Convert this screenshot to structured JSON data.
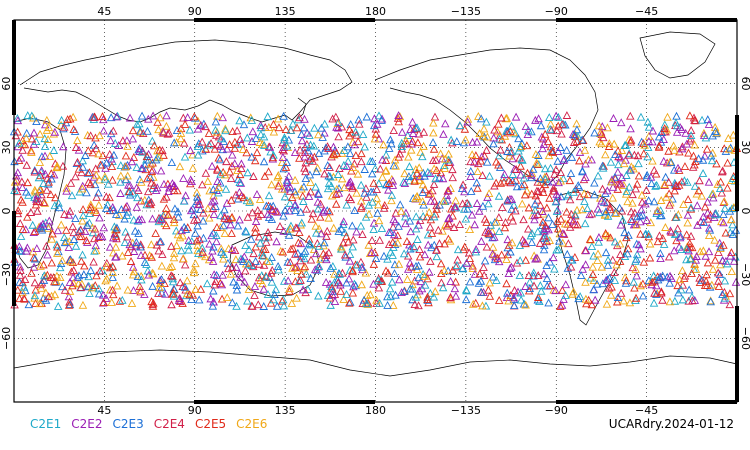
{
  "map": {
    "lon_ticks_top": [
      "45",
      "90",
      "135",
      "180",
      "−135",
      "−90",
      "−45"
    ],
    "lon_ticks_bottom": [
      "45",
      "90",
      "135",
      "180",
      "−135",
      "−90",
      "−45"
    ],
    "lat_ticks_left": [
      "60",
      "30",
      "0",
      "−30",
      "−60"
    ],
    "lat_ticks_right": [
      "60",
      "30",
      "0",
      "−30",
      "−60"
    ],
    "lon_values": [
      45,
      90,
      135,
      180,
      225,
      270,
      315
    ],
    "lat_values": [
      60,
      30,
      0,
      -30,
      -60
    ],
    "lon_range": [
      0,
      360
    ],
    "lat_range": [
      -90,
      90
    ],
    "grid": "dotted",
    "marker": "open-triangle",
    "observation_band_lat": [
      -45,
      45
    ]
  },
  "legend": [
    {
      "label": "C2E1",
      "color": "#1ea9c9"
    },
    {
      "label": "C2E2",
      "color": "#9b1fb5"
    },
    {
      "label": "C2E3",
      "color": "#1c6fd6"
    },
    {
      "label": "C2E4",
      "color": "#d11f48"
    },
    {
      "label": "C2E5",
      "color": "#e02a1a"
    },
    {
      "label": "C2E6",
      "color": "#f0a818"
    }
  ],
  "title": "UCARdry.2024-01-12"
}
